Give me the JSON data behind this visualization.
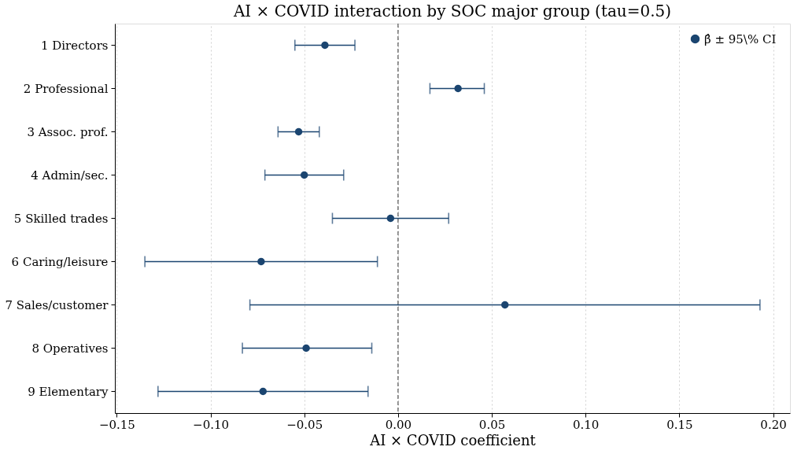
{
  "chart_data": {
    "type": "scatter",
    "orientation": "horizontal",
    "title": "AI × COVID interaction by SOC major group (tau=0.5)",
    "xlabel": "AI × COVID coefficient",
    "categories": [
      "1 Directors",
      "2 Professional",
      "3 Assoc. prof.",
      "4 Admin/sec.",
      "5 Skilled trades",
      "6 Caring/leisure",
      "7 Sales/customer",
      "8 Operatives",
      "9 Elementary"
    ],
    "series": [
      {
        "name": "β̂ ±  95\\% CI",
        "color": "#1b4570",
        "values": [
          -0.039,
          0.032,
          -0.053,
          -0.05,
          -0.004,
          -0.073,
          0.057,
          -0.049,
          -0.072
        ],
        "errors": [
          [
            -0.055,
            -0.023
          ],
          [
            0.017,
            0.046
          ],
          [
            -0.064,
            -0.042
          ],
          [
            -0.071,
            -0.029
          ],
          [
            -0.035,
            0.027
          ],
          [
            -0.135,
            -0.011
          ],
          [
            -0.079,
            0.193
          ],
          [
            -0.083,
            -0.014
          ],
          [
            -0.128,
            -0.016
          ]
        ]
      }
    ],
    "xlim": [
      -0.151,
      0.209
    ],
    "xticks": [
      {
        "value": -0.15,
        "label": "−0.15"
      },
      {
        "value": -0.1,
        "label": "−0.10"
      },
      {
        "value": -0.05,
        "label": "−0.05"
      },
      {
        "value": 0,
        "label": "0.00"
      },
      {
        "value": 0.05,
        "label": "0.05"
      },
      {
        "value": 0.1,
        "label": "0.10"
      },
      {
        "value": 0.15,
        "label": "0.15"
      },
      {
        "value": 0.2,
        "label": "0.20"
      }
    ],
    "ref_lines": [
      {
        "axis": "x",
        "value": 0,
        "line_style": "dashed",
        "color": "#555555"
      }
    ],
    "grid": "x",
    "legend": "top right",
    "marker": "circle"
  }
}
